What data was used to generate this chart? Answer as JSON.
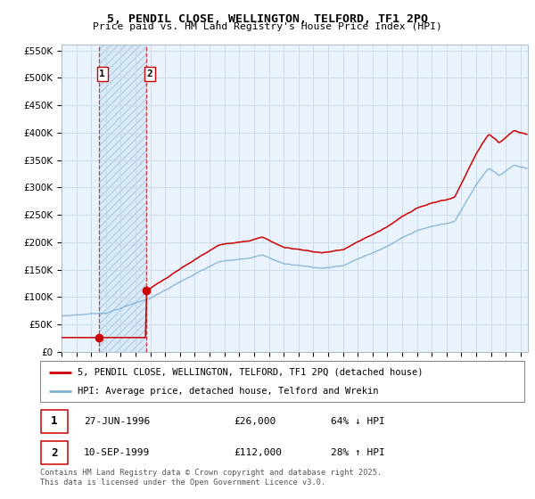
{
  "title1": "5, PENDIL CLOSE, WELLINGTON, TELFORD, TF1 2PQ",
  "title2": "Price paid vs. HM Land Registry's House Price Index (HPI)",
  "legend_line1": "5, PENDIL CLOSE, WELLINGTON, TELFORD, TF1 2PQ (detached house)",
  "legend_line2": "HPI: Average price, detached house, Telford and Wrekin",
  "footnote": "Contains HM Land Registry data © Crown copyright and database right 2025.\nThis data is licensed under the Open Government Licence v3.0.",
  "sale1_date": "27-JUN-1996",
  "sale1_price": 26000,
  "sale1_hpi": "64% ↓ HPI",
  "sale1_year": 1996.5,
  "sale2_date": "10-SEP-1999",
  "sale2_price": 112000,
  "sale2_hpi": "28% ↑ HPI",
  "sale2_year": 1999.7,
  "red_line_color": "#cc0000",
  "blue_line_color": "#7bafd4",
  "grid_color": "#c8d8e8",
  "background_plot": "#eaf2fb",
  "background_hatch_color": "#d8eaf8",
  "ylim_max": 560000,
  "ylim_min": 0,
  "xlim_min": 1994.0,
  "xlim_max": 2025.5
}
